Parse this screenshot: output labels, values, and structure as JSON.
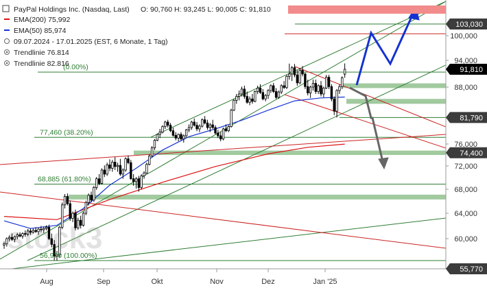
{
  "chart_data": {
    "type": "candlestick",
    "legend": {
      "title": "PayPal Holdings Inc. (Nasdaq, Last)",
      "ohlc": "O: 90,760  H: 93,245  L: 90,005  C: 91,810",
      "ema200": "EMA(200)  75,992",
      "ema50": "EMA(50)  85,974",
      "range": "09.07.2024 - 17.01.2025    (EST, 6 Monate, 1 Tag)",
      "trend1": "Trendlinie  76.814",
      "trend2": "Trendlinie  82.816"
    },
    "watermark": "stock3",
    "x_ticks": [
      "Aug",
      "Sep",
      "Okt",
      "Nov",
      "Dez",
      "Jan '25"
    ],
    "y_ticks": [
      "100,000",
      "94,000",
      "88,000",
      "76,000",
      "72,000",
      "68,000",
      "64,000",
      "60,000"
    ],
    "ylim": [
      54.5,
      106
    ],
    "tags": [
      {
        "label": "103,030",
        "value": 103.03,
        "color": "#3c3c3c"
      },
      {
        "label": "91,810",
        "value": 91.81,
        "color": "#000000"
      },
      {
        "label": "81,790",
        "value": 81.79,
        "color": "#3c3c3c"
      },
      {
        "label": "74,400",
        "value": 74.4,
        "color": "#3c3c3c"
      },
      {
        "label": "55,770",
        "value": 55.77,
        "color": "#3c3c3c"
      }
    ],
    "fib_levels": [
      {
        "label": "77,460 (38.20%)",
        "value": 77.46
      },
      {
        "label": "68,885 (61.80%)",
        "value": 68.885
      },
      {
        "label": "56,970 (100.00%)",
        "value": 56.97
      },
      {
        "label": "(0.00%)",
        "value": 91.2
      }
    ],
    "candles": [
      [
        0,
        59.1,
        59.6,
        58.6,
        59.3
      ],
      [
        1,
        59.3,
        60.2,
        58.9,
        60.0
      ],
      [
        2,
        60.0,
        60.5,
        59.6,
        60.2
      ],
      [
        3,
        60.2,
        60.8,
        59.7,
        59.9
      ],
      [
        4,
        59.9,
        60.5,
        59.5,
        60.3
      ],
      [
        5,
        60.3,
        60.9,
        59.9,
        60.6
      ],
      [
        6,
        60.6,
        61.0,
        60.2,
        60.4
      ],
      [
        7,
        60.4,
        61.0,
        60.0,
        60.8
      ],
      [
        8,
        60.8,
        61.3,
        60.3,
        60.7
      ],
      [
        9,
        60.7,
        61.5,
        60.4,
        61.2
      ],
      [
        10,
        61.2,
        61.6,
        60.6,
        61.0
      ],
      [
        11,
        61.0,
        61.6,
        60.8,
        61.3
      ],
      [
        12,
        61.3,
        61.8,
        60.9,
        61.1
      ],
      [
        13,
        61.1,
        61.7,
        60.6,
        61.5
      ],
      [
        14,
        61.5,
        62.0,
        61.0,
        61.4
      ],
      [
        15,
        61.4,
        61.9,
        60.9,
        61.6
      ],
      [
        16,
        61.6,
        62.1,
        61.3,
        61.8
      ],
      [
        17,
        61.8,
        62.2,
        59.8,
        60.0
      ],
      [
        18,
        60.0,
        60.8,
        58.8,
        59.2
      ],
      [
        19,
        59.2,
        59.8,
        57.0,
        57.6
      ],
      [
        20,
        57.6,
        58.3,
        56.97,
        57.8
      ],
      [
        21,
        57.8,
        62.0,
        57.4,
        61.8
      ],
      [
        22,
        61.8,
        65.8,
        61.5,
        65.4
      ],
      [
        23,
        65.4,
        67.2,
        64.8,
        66.8
      ],
      [
        24,
        66.8,
        67.3,
        65.3,
        65.6
      ],
      [
        25,
        65.6,
        66.1,
        62.8,
        63.2
      ],
      [
        26,
        63.2,
        64.3,
        62.6,
        64.0
      ],
      [
        27,
        64.0,
        64.6,
        61.3,
        61.7
      ],
      [
        28,
        61.7,
        63.3,
        61.4,
        62.9
      ],
      [
        29,
        62.9,
        63.6,
        61.6,
        62.1
      ],
      [
        30,
        62.1,
        64.3,
        61.9,
        64.0
      ],
      [
        31,
        64.0,
        66.1,
        63.7,
        65.8
      ],
      [
        32,
        65.8,
        67.3,
        65.3,
        67.0
      ],
      [
        33,
        67.0,
        67.6,
        65.8,
        66.2
      ],
      [
        34,
        66.2,
        68.6,
        65.9,
        68.3
      ],
      [
        35,
        68.3,
        70.1,
        67.9,
        69.8
      ],
      [
        36,
        69.8,
        70.6,
        68.7,
        69.0
      ],
      [
        37,
        69.0,
        71.6,
        68.8,
        71.3
      ],
      [
        38,
        71.3,
        72.1,
        70.1,
        70.6
      ],
      [
        39,
        70.6,
        72.6,
        70.3,
        72.2
      ],
      [
        40,
        72.2,
        73.2,
        71.1,
        71.6
      ],
      [
        41,
        71.6,
        73.1,
        71.0,
        72.7
      ],
      [
        42,
        72.7,
        73.6,
        71.3,
        71.9
      ],
      [
        43,
        71.9,
        72.6,
        71.0,
        72.1
      ],
      [
        44,
        72.1,
        73.3,
        70.3,
        70.6
      ],
      [
        45,
        70.6,
        71.6,
        69.8,
        71.3
      ],
      [
        46,
        71.3,
        73.6,
        71.0,
        73.3
      ],
      [
        47,
        73.3,
        73.9,
        72.3,
        72.6
      ],
      [
        48,
        72.6,
        73.1,
        69.6,
        69.8
      ],
      [
        49,
        69.8,
        70.6,
        68.6,
        69.3
      ],
      [
        50,
        69.3,
        70.1,
        68.1,
        69.8
      ],
      [
        51,
        69.8,
        70.3,
        67.6,
        68.3
      ],
      [
        52,
        68.3,
        70.6,
        68.0,
        70.3
      ],
      [
        53,
        70.3,
        71.1,
        69.8,
        70.8
      ],
      [
        54,
        70.8,
        72.6,
        70.6,
        72.3
      ],
      [
        55,
        72.3,
        74.1,
        72.1,
        73.8
      ],
      [
        56,
        73.8,
        75.6,
        73.6,
        75.3
      ],
      [
        57,
        75.3,
        77.1,
        74.9,
        76.8
      ],
      [
        58,
        76.8,
        78.3,
        76.6,
        78.1
      ],
      [
        59,
        78.1,
        79.3,
        77.3,
        78.6
      ],
      [
        60,
        78.6,
        80.1,
        78.3,
        79.8
      ],
      [
        61,
        79.8,
        81.1,
        79.3,
        80.8
      ],
      [
        62,
        80.8,
        81.3,
        79.6,
        80.1
      ],
      [
        63,
        80.1,
        80.6,
        78.6,
        78.9
      ],
      [
        64,
        78.9,
        79.6,
        77.6,
        77.9
      ],
      [
        65,
        77.9,
        78.6,
        76.8,
        77.3
      ],
      [
        66,
        77.3,
        78.3,
        76.6,
        78.1
      ],
      [
        67,
        78.1,
        78.6,
        76.8,
        77.1
      ],
      [
        68,
        77.1,
        78.1,
        76.3,
        77.8
      ],
      [
        69,
        77.8,
        79.3,
        77.6,
        79.1
      ],
      [
        70,
        79.1,
        80.3,
        78.6,
        79.6
      ],
      [
        71,
        79.6,
        81.1,
        79.1,
        80.8
      ],
      [
        72,
        80.8,
        81.6,
        79.8,
        80.1
      ],
      [
        73,
        80.1,
        80.8,
        78.8,
        79.3
      ],
      [
        74,
        79.3,
        80.3,
        78.6,
        79.9
      ],
      [
        75,
        79.9,
        81.6,
        79.6,
        81.3
      ],
      [
        76,
        81.3,
        82.1,
        80.3,
        80.6
      ],
      [
        77,
        80.6,
        81.3,
        79.1,
        79.6
      ],
      [
        78,
        79.6,
        80.6,
        78.6,
        80.2
      ],
      [
        79,
        80.2,
        81.3,
        79.3,
        79.6
      ],
      [
        80,
        79.6,
        80.1,
        78.1,
        78.4
      ],
      [
        81,
        78.4,
        79.1,
        77.3,
        77.8
      ],
      [
        82,
        77.8,
        78.6,
        76.6,
        77.1
      ],
      [
        83,
        77.1,
        79.6,
        76.8,
        79.3
      ],
      [
        84,
        79.3,
        80.3,
        78.6,
        78.9
      ],
      [
        85,
        78.9,
        80.1,
        78.6,
        79.8
      ],
      [
        86,
        79.8,
        83.6,
        79.6,
        83.3
      ],
      [
        87,
        83.3,
        85.6,
        83.1,
        85.3
      ],
      [
        88,
        85.3,
        86.6,
        84.6,
        86.1
      ],
      [
        89,
        86.1,
        87.3,
        85.3,
        86.6
      ],
      [
        90,
        86.6,
        88.1,
        86.1,
        87.6
      ],
      [
        91,
        87.6,
        88.3,
        85.6,
        86.1
      ],
      [
        92,
        86.1,
        87.1,
        84.6,
        84.9
      ],
      [
        93,
        84.9,
        86.1,
        84.3,
        85.6
      ],
      [
        94,
        85.6,
        86.6,
        84.6,
        85.1
      ],
      [
        95,
        85.1,
        87.3,
        84.9,
        87.1
      ],
      [
        96,
        87.1,
        88.3,
        86.6,
        87.8
      ],
      [
        97,
        87.8,
        88.6,
        86.6,
        86.9
      ],
      [
        98,
        86.9,
        87.6,
        85.3,
        85.6
      ],
      [
        99,
        85.6,
        86.6,
        85.1,
        86.3
      ],
      [
        100,
        86.3,
        87.6,
        85.6,
        87.3
      ],
      [
        101,
        87.3,
        88.6,
        86.8,
        88.3
      ],
      [
        102,
        88.3,
        88.9,
        86.8,
        87.1
      ],
      [
        103,
        87.1,
        87.8,
        85.6,
        85.9
      ],
      [
        104,
        85.9,
        87.3,
        85.6,
        87.0
      ],
      [
        105,
        87.0,
        88.6,
        86.6,
        88.3
      ],
      [
        106,
        88.3,
        89.3,
        87.6,
        87.9
      ],
      [
        107,
        87.9,
        90.6,
        87.6,
        90.3
      ],
      [
        108,
        90.3,
        93.2,
        89.6,
        90.8
      ],
      [
        109,
        90.8,
        92.6,
        89.3,
        92.2
      ],
      [
        110,
        92.2,
        93.1,
        90.1,
        90.6
      ],
      [
        111,
        90.6,
        91.6,
        88.3,
        88.9
      ],
      [
        112,
        88.9,
        92.1,
        88.6,
        91.6
      ],
      [
        113,
        91.6,
        92.6,
        90.3,
        90.8
      ],
      [
        114,
        90.8,
        91.1,
        87.6,
        88.1
      ],
      [
        115,
        88.1,
        89.6,
        86.3,
        86.8
      ],
      [
        116,
        86.8,
        88.3,
        85.8,
        88.0
      ],
      [
        117,
        88.0,
        89.6,
        87.3,
        88.8
      ],
      [
        118,
        88.8,
        89.6,
        86.6,
        87.1
      ],
      [
        119,
        87.1,
        88.6,
        86.6,
        88.3
      ],
      [
        120,
        88.3,
        89.3,
        86.1,
        86.6
      ],
      [
        121,
        86.6,
        88.1,
        85.9,
        87.8
      ],
      [
        122,
        87.8,
        90.6,
        87.6,
        90.1
      ],
      [
        123,
        90.1,
        90.6,
        87.6,
        88.1
      ],
      [
        124,
        88.1,
        88.6,
        85.1,
        85.6
      ],
      [
        125,
        85.6,
        86.1,
        82.3,
        83.1
      ],
      [
        126,
        83.1,
        87.6,
        81.79,
        87.3
      ],
      [
        127,
        87.3,
        88.6,
        86.6,
        88.1
      ],
      [
        128,
        88.1,
        90.3,
        87.6,
        90.0
      ],
      [
        129,
        90.76,
        93.245,
        90.005,
        91.81
      ]
    ],
    "ema200": [
      [
        0,
        63.5
      ],
      [
        20,
        63.0
      ],
      [
        40,
        66.3
      ],
      [
        60,
        69.2
      ],
      [
        80,
        71.9
      ],
      [
        100,
        74.2
      ],
      [
        115,
        75.4
      ],
      [
        129,
        75.99
      ]
    ],
    "ema50": [
      [
        0,
        62.8
      ],
      [
        10,
        61.6
      ],
      [
        20,
        62.1
      ],
      [
        30,
        64.8
      ],
      [
        40,
        68.7
      ],
      [
        50,
        71.6
      ],
      [
        60,
        74.9
      ],
      [
        70,
        77.6
      ],
      [
        80,
        79.3
      ],
      [
        90,
        81.2
      ],
      [
        100,
        83.3
      ],
      [
        110,
        85.2
      ],
      [
        120,
        85.8
      ],
      [
        129,
        85.974
      ]
    ],
    "zones": [
      {
        "y1": 87.8,
        "y2": 88.8
      },
      {
        "y1": 84.6,
        "y2": 85.6
      },
      {
        "y1": 74.0,
        "y2": 74.8
      },
      {
        "y1": 66.3,
        "y2": 67.1
      }
    ],
    "resistance_band": {
      "y1": 104.0,
      "y2": 105.3
    }
  }
}
